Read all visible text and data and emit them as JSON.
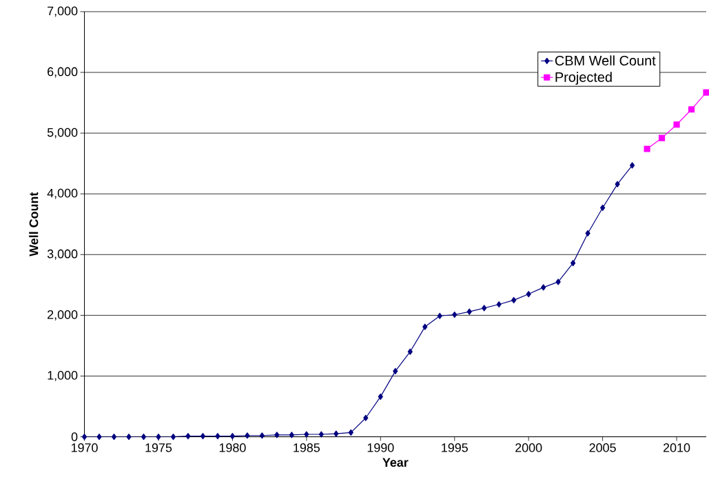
{
  "chart_data": {
    "type": "line",
    "xlabel": "Year",
    "ylabel": "Well Count",
    "xlim": [
      1970,
      2012
    ],
    "ylim": [
      0,
      7000
    ],
    "xticks": [
      1970,
      1975,
      1980,
      1985,
      1990,
      1995,
      2000,
      2005,
      2010
    ],
    "yticks": [
      0,
      {
        "value": 1000,
        "label": "1,000"
      },
      {
        "value": 2000,
        "label": "2,000"
      },
      {
        "value": 3000,
        "label": "3,000"
      },
      {
        "value": 4000,
        "label": "4,000"
      },
      {
        "value": 5000,
        "label": "5,000"
      },
      {
        "value": 6000,
        "label": "6,000"
      },
      {
        "value": 7000,
        "label": "7,000"
      }
    ],
    "grid": "y",
    "legend": "top right",
    "series": [
      {
        "name": "CBM Well Count",
        "color": "#000080",
        "marker": "diamond",
        "x": [
          1970,
          1971,
          1972,
          1973,
          1974,
          1975,
          1976,
          1977,
          1978,
          1979,
          1980,
          1981,
          1982,
          1983,
          1984,
          1985,
          1986,
          1987,
          1988,
          1989,
          1990,
          1991,
          1992,
          1993,
          1994,
          1995,
          1996,
          1997,
          1998,
          1999,
          2000,
          2001,
          2002,
          2003,
          2004,
          2005,
          2006,
          2007
        ],
        "values": [
          0,
          0,
          0,
          0,
          0,
          0,
          0,
          10,
          10,
          10,
          10,
          20,
          20,
          30,
          30,
          40,
          40,
          50,
          70,
          310,
          660,
          1080,
          1400,
          1810,
          1990,
          2010,
          2060,
          2120,
          2180,
          2250,
          2350,
          2460,
          2550,
          2860,
          3350,
          3770,
          4160,
          4470
        ]
      },
      {
        "name": "Projected",
        "color": "#ff00ff",
        "marker": "square",
        "x": [
          2008,
          2009,
          2010,
          2011,
          2012
        ],
        "values": [
          4740,
          4920,
          5140,
          5390,
          5670
        ]
      }
    ]
  }
}
